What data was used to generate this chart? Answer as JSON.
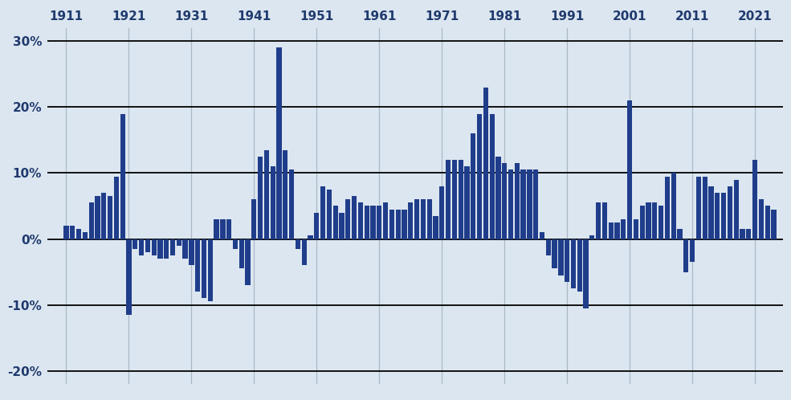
{
  "years": [
    1911,
    1912,
    1913,
    1914,
    1915,
    1916,
    1917,
    1918,
    1919,
    1920,
    1921,
    1922,
    1923,
    1924,
    1925,
    1926,
    1927,
    1928,
    1929,
    1930,
    1931,
    1932,
    1933,
    1934,
    1935,
    1936,
    1937,
    1938,
    1939,
    1940,
    1941,
    1942,
    1943,
    1944,
    1945,
    1946,
    1947,
    1948,
    1949,
    1950,
    1951,
    1952,
    1953,
    1954,
    1955,
    1956,
    1957,
    1958,
    1959,
    1960,
    1961,
    1962,
    1963,
    1964,
    1965,
    1966,
    1967,
    1968,
    1969,
    1970,
    1971,
    1972,
    1973,
    1974,
    1975,
    1976,
    1977,
    1978,
    1979,
    1980,
    1981,
    1982,
    1983,
    1984,
    1985,
    1986,
    1987,
    1988,
    1989,
    1990,
    1991,
    1992,
    1993,
    1994,
    1995,
    1996,
    1997,
    1998,
    1999,
    2000,
    2001,
    2002,
    2003,
    2004,
    2005,
    2006,
    2007,
    2008,
    2009,
    2010,
    2011,
    2012,
    2013,
    2014,
    2015,
    2016,
    2017,
    2018,
    2019,
    2020,
    2021,
    2022,
    2023,
    2024
  ],
  "values": [
    2.0,
    2.0,
    1.5,
    1.0,
    5.5,
    6.5,
    7.0,
    6.5,
    9.5,
    19.0,
    -11.5,
    -1.5,
    -2.5,
    -2.0,
    -2.5,
    -3.0,
    -3.0,
    -2.5,
    -1.0,
    -3.0,
    -4.0,
    -8.0,
    -9.0,
    -9.5,
    3.0,
    3.0,
    3.0,
    -1.5,
    -4.5,
    -7.0,
    6.0,
    12.5,
    13.5,
    11.0,
    29.0,
    13.5,
    10.5,
    -1.5,
    -4.0,
    0.5,
    4.0,
    8.0,
    7.5,
    5.0,
    4.0,
    6.0,
    6.5,
    5.5,
    5.0,
    5.0,
    5.0,
    5.5,
    4.5,
    4.5,
    4.5,
    5.5,
    6.0,
    6.0,
    6.0,
    3.5,
    8.0,
    12.0,
    12.0,
    12.0,
    11.0,
    16.0,
    19.0,
    23.0,
    19.0,
    12.5,
    11.5,
    10.5,
    11.5,
    10.5,
    10.5,
    10.5,
    1.0,
    -2.5,
    -4.5,
    -5.5,
    -6.5,
    -7.5,
    -8.0,
    -10.5,
    0.5,
    5.5,
    5.5,
    2.5,
    2.5,
    3.0,
    21.0,
    3.0,
    5.0,
    5.5,
    5.5,
    5.0,
    9.5,
    10.0,
    1.5,
    -5.0,
    -3.5,
    9.5,
    9.5,
    8.0,
    7.0,
    7.0,
    8.0,
    9.0,
    1.5,
    1.5,
    12.0,
    6.0,
    5.0,
    4.5
  ],
  "bar_color": "#1f3d8a",
  "bg_color": "#dce6f0",
  "ylim": [
    -22,
    32
  ],
  "yticks": [
    -20,
    -10,
    0,
    10,
    20,
    30
  ],
  "ytick_labels": [
    "-20%",
    "-10%",
    "0%",
    "10%",
    "20%",
    "30%"
  ],
  "xtick_years": [
    1911,
    1921,
    1931,
    1941,
    1951,
    1961,
    1971,
    1981,
    1991,
    2001,
    2011,
    2021
  ],
  "hline_color": "#000000",
  "vline_color": "#aab8c8",
  "hline_lw": 1.3,
  "vline_lw": 0.9,
  "tick_color": "#1f3a6e",
  "tick_fontsize": 11
}
